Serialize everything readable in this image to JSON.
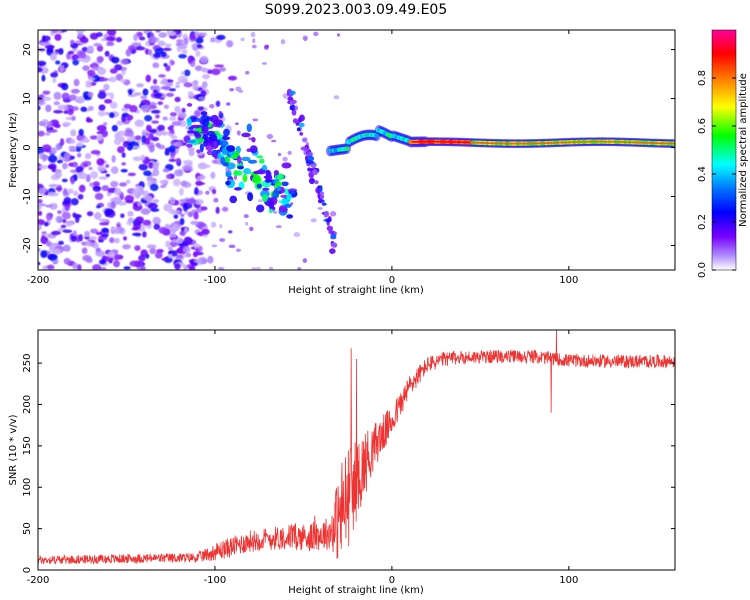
{
  "title": "S099.2023.003.09.49.E05",
  "chart_data": [
    {
      "type": "heatmap",
      "name": "spectrogram",
      "title": "S099.2023.003.09.49.E05",
      "xlabel": "Height of straight line (km)",
      "ylabel": "Frequency (Hz)",
      "xlim": [
        -200,
        160
      ],
      "ylim": [
        -25,
        24
      ],
      "xticks": [
        -200,
        -100,
        0,
        100
      ],
      "xtick_labels": [
        "-200",
        "-100",
        "0",
        "100"
      ],
      "yticks": [
        -20,
        -10,
        0,
        10,
        20
      ],
      "ytick_labels": [
        "-20",
        "-10",
        "0",
        "10",
        "20"
      ],
      "colorbar": {
        "label": "Normalized spectral amplitude",
        "range": [
          0,
          1
        ],
        "ticks": [
          0.0,
          0.2,
          0.4,
          0.6,
          0.8
        ],
        "tick_labels": [
          "0.0",
          "0.2",
          "0.4",
          "0.6",
          "0.8"
        ],
        "colors": [
          "#ffffff",
          "#7700ff",
          "#0000ff",
          "#00ffff",
          "#00ff00",
          "#ffff00",
          "#ff0000",
          "#ff00aa"
        ]
      },
      "features": {
        "noise_region_km": [
          -200,
          -105
        ],
        "carrier_trace_km": [
          -30,
          160
        ],
        "carrier_freq_hz": 1.0,
        "diagonal_streak_1_km": [
          -115,
          -55
        ],
        "diagonal_streak_1_hz": [
          5,
          -12
        ],
        "diagonal_streak_2_km": [
          -58,
          -32
        ],
        "diagonal_streak_2_hz": [
          12,
          -20
        ]
      }
    },
    {
      "type": "line",
      "name": "snr",
      "xlabel": "Height of straight line (km)",
      "ylabel": "SNR (10 * v/v)",
      "xlim": [
        -200,
        160
      ],
      "ylim": [
        0,
        290
      ],
      "xticks": [
        -200,
        -100,
        0,
        100
      ],
      "xtick_labels": [
        "-200",
        "-100",
        "0",
        "100"
      ],
      "yticks": [
        0,
        50,
        100,
        150,
        200,
        250
      ],
      "ytick_labels": [
        "0",
        "50",
        "100",
        "150",
        "200",
        "250"
      ],
      "color": "#ee3333",
      "series": [
        {
          "name": "SNR",
          "envelope_x": [
            -200,
            -110,
            -95,
            -80,
            -60,
            -45,
            -35,
            -28,
            -22,
            -15,
            -10,
            -5,
            0,
            10,
            20,
            30,
            40,
            60,
            80,
            100,
            130,
            160
          ],
          "envelope_y": [
            12,
            15,
            25,
            35,
            40,
            40,
            45,
            70,
            100,
            130,
            150,
            165,
            180,
            222,
            248,
            255,
            257,
            258,
            258,
            253,
            252,
            252
          ],
          "noise_amp_x": [
            -200,
            -110,
            -95,
            -60,
            -35,
            -28,
            -20,
            -10,
            0,
            20,
            40,
            160
          ],
          "noise_amp_y": [
            5,
            6,
            12,
            15,
            20,
            70,
            50,
            28,
            18,
            10,
            8,
            8
          ],
          "spikes": [
            {
              "x": -23,
              "y": 268
            },
            {
              "x": -20,
              "y": 255
            },
            {
              "x": 93,
              "y": 292
            },
            {
              "x": 90,
              "y": 190
            }
          ]
        }
      ]
    }
  ]
}
